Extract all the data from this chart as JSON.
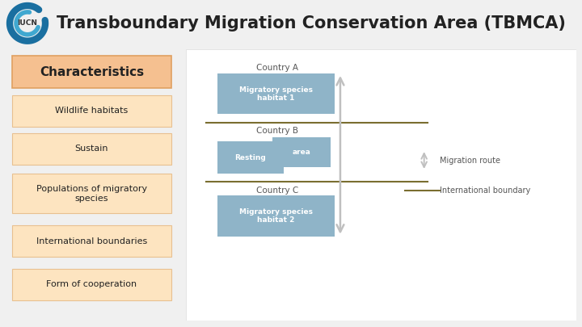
{
  "title": "Transboundary Migration Conservation Area (TBMCA)",
  "title_fontsize": 15,
  "title_color": "#222222",
  "bg_color": "#f0f0f0",
  "left_panel_bg": "#f0f0f0",
  "diagram_bg": "#ffffff",
  "characteristics_header": "Characteristics",
  "characteristics_header_bg": "#f5c090",
  "characteristics_header_border": "#e0a060",
  "left_items": [
    {
      "text": "Wildlife habitats",
      "bg": "#fde4c0",
      "border": "#e8c090"
    },
    {
      "text": "Sustain",
      "bg": "#fde4c0",
      "border": "#e8c090"
    },
    {
      "text": "Populations of migratory\nspecies",
      "bg": "#fde4c0",
      "border": "#e8c090"
    },
    {
      "text": "International boundaries",
      "bg": "#fde4c0",
      "border": "#e8c090"
    },
    {
      "text": "Form of cooperation",
      "bg": "#fde4c0",
      "border": "#e8c090"
    }
  ],
  "country_a_label": "Country A",
  "country_b_label": "Country B",
  "country_c_label": "Country C",
  "habitat1_label": "Migratory species\nhabitat 1",
  "habitat2_label": "Migratory species\nhabitat 2",
  "resting_label": "Resting",
  "area_label": "area",
  "migration_route_label": "Migration route",
  "intl_boundary_label": "International boundary",
  "habitat_box_color": "#8fb4c8",
  "boundary_line_color": "#7a6e30",
  "arrow_color": "#c0c0c0",
  "iucn_outer": "#1a6fa0",
  "iucn_inner": "#40a8d0"
}
